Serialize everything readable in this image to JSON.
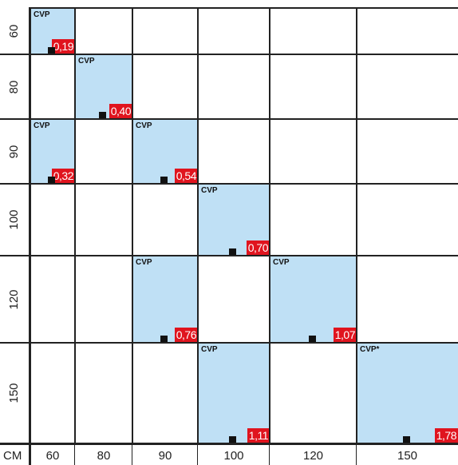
{
  "columns": [
    "60",
    "80",
    "90",
    "100",
    "120",
    "150"
  ],
  "rows": [
    "60",
    "80",
    "90",
    "100",
    "120",
    "150"
  ],
  "unit_label": "CM",
  "cells": [
    {
      "row": 0,
      "col": 0,
      "label": "CVP",
      "price": "0,19"
    },
    {
      "row": 1,
      "col": 1,
      "label": "CVP",
      "price": "0,40"
    },
    {
      "row": 2,
      "col": 0,
      "label": "CVP",
      "price": "0,32"
    },
    {
      "row": 2,
      "col": 2,
      "label": "CVP",
      "price": "0,54"
    },
    {
      "row": 3,
      "col": 3,
      "label": "CVP",
      "price": "0,70"
    },
    {
      "row": 4,
      "col": 2,
      "label": "CVP",
      "price": "0,76"
    },
    {
      "row": 4,
      "col": 4,
      "label": "CVP",
      "price": "1,07"
    },
    {
      "row": 5,
      "col": 3,
      "label": "CVP",
      "price": "1,11"
    },
    {
      "row": 5,
      "col": 5,
      "label": "CVP*",
      "price": "1,78"
    }
  ],
  "colors": {
    "fill": "#bfe0f5",
    "price_bg": "#e0141e",
    "marker": "#111111"
  }
}
